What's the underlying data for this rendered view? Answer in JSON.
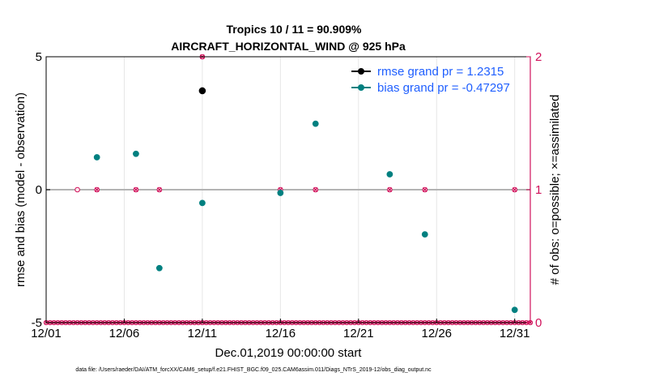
{
  "colors": {
    "rmse": "#000000",
    "bias": "#008080",
    "obs": "#d0105a",
    "legend_text": "#1f5fff",
    "zero_line": "#b3b3b3",
    "grid": "#e6e6e6"
  },
  "chart_data": {
    "type": "scatter",
    "title": "Tropics 10 / 11 = 90.909%",
    "subtitle": "AIRCRAFT_HORIZONTAL_WIND @ 925 hPa",
    "xlabel": "Dec.01,2019 00:00:00 start",
    "ylabel": "rmse and bias (model - observation)",
    "ylabel_right": "# of obs: o=possible; ×=assimilated",
    "xlim": [
      1,
      32
    ],
    "ylim": [
      -5,
      5
    ],
    "ylim_right": [
      0,
      2
    ],
    "x_ticks": [
      1,
      6,
      11,
      16,
      21,
      26,
      31
    ],
    "x_tick_labels": [
      "12/01",
      "12/06",
      "12/11",
      "12/16",
      "12/21",
      "12/26",
      "12/31"
    ],
    "y_ticks": [
      -5,
      0,
      5
    ],
    "y_tick_labels": [
      "-5",
      "0",
      "5"
    ],
    "y_right_ticks": [
      0,
      1,
      2
    ],
    "y_right_tick_labels": [
      "0",
      "1",
      "2"
    ],
    "legend": {
      "position": "top-right",
      "entries": [
        "rmse grand pr = 1.2315",
        "bias grand pr = -0.47297"
      ]
    },
    "footnote": "data file: /Users/raeder/DAI/ATM_forcXX/CAM6_setup/f.e21.FHIST_BGC.f09_025.CAM6assim.011/Diags_NTrS_2019-12/obs_diag_output.nc",
    "series": [
      {
        "name": "rmse",
        "x": [
          11
        ],
        "values": [
          3.72
        ]
      },
      {
        "name": "bias",
        "x": [
          4.25,
          6.75,
          8.25,
          11,
          16,
          18.25,
          23,
          25.25,
          31
        ],
        "values": [
          1.22,
          1.35,
          -2.95,
          -0.5,
          -0.12,
          2.48,
          0.58,
          -1.68,
          -4.52
        ]
      },
      {
        "name": "obs_possible_one",
        "x": [
          3,
          4.25,
          6.75,
          8.25,
          16,
          18.25,
          23,
          25.25,
          31
        ],
        "values": [
          1,
          1,
          1,
          1,
          1,
          1,
          1,
          1,
          1
        ]
      },
      {
        "name": "obs_assimilated_one",
        "x": [
          4.25,
          6.75,
          8.25,
          16,
          18.25,
          23,
          25.25,
          31
        ],
        "values": [
          1,
          1,
          1,
          1,
          1,
          1,
          1,
          1
        ]
      },
      {
        "name": "obs_possible_two",
        "x": [
          11
        ],
        "values": [
          2
        ]
      },
      {
        "name": "obs_assimilated_two",
        "x": [
          11
        ],
        "values": [
          2
        ]
      }
    ],
    "obs_baseline": {
      "start": 1,
      "end": 32,
      "step": 0.25,
      "value": 0
    }
  }
}
